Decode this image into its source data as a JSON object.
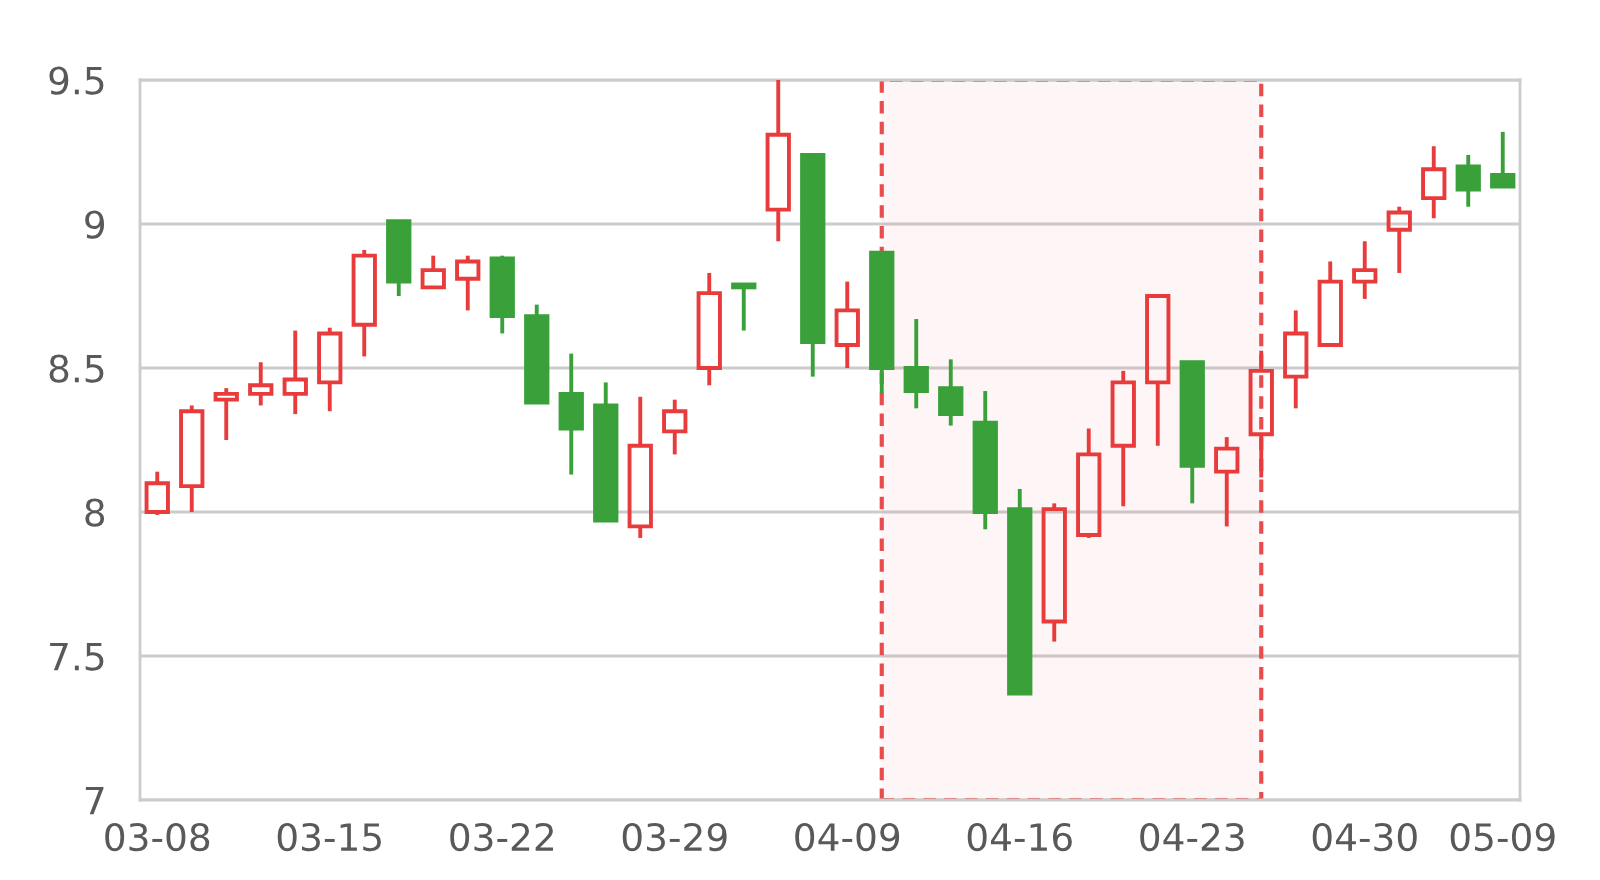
{
  "chart_data": {
    "type": "candlestick",
    "categories": [
      "03-08",
      null,
      null,
      null,
      null,
      "03-15",
      null,
      null,
      null,
      null,
      "03-22",
      null,
      null,
      null,
      null,
      "03-29",
      null,
      null,
      null,
      null,
      "04-09",
      null,
      null,
      null,
      null,
      "04-16",
      null,
      null,
      null,
      null,
      "04-23",
      null,
      null,
      null,
      null,
      "04-30",
      null,
      null,
      null,
      "05-09"
    ],
    "ohlc": [
      [
        8.0,
        8.14,
        7.99,
        8.1
      ],
      [
        8.09,
        8.37,
        8.0,
        8.35
      ],
      [
        8.39,
        8.43,
        8.25,
        8.41
      ],
      [
        8.41,
        8.52,
        8.37,
        8.44
      ],
      [
        8.41,
        8.63,
        8.34,
        8.46
      ],
      [
        8.45,
        8.64,
        8.35,
        8.62
      ],
      [
        8.65,
        8.91,
        8.54,
        8.89
      ],
      [
        9.01,
        9.01,
        8.75,
        8.8
      ],
      [
        8.78,
        8.89,
        8.78,
        8.84
      ],
      [
        8.81,
        8.89,
        8.7,
        8.87
      ],
      [
        8.88,
        8.89,
        8.62,
        8.68
      ],
      [
        8.68,
        8.72,
        8.38,
        8.38
      ],
      [
        8.41,
        8.55,
        8.13,
        8.29
      ],
      [
        8.37,
        8.45,
        7.97,
        7.97
      ],
      [
        7.95,
        8.4,
        7.91,
        8.23
      ],
      [
        8.28,
        8.39,
        8.2,
        8.35
      ],
      [
        8.5,
        8.83,
        8.44,
        8.76
      ],
      [
        8.79,
        8.79,
        8.63,
        8.78
      ],
      [
        9.05,
        9.5,
        8.94,
        9.31
      ],
      [
        9.24,
        9.24,
        8.47,
        8.59
      ],
      [
        8.58,
        8.8,
        8.5,
        8.7
      ],
      [
        8.9,
        8.9,
        8.41,
        8.5
      ],
      [
        8.5,
        8.67,
        8.36,
        8.42
      ],
      [
        8.43,
        8.53,
        8.3,
        8.34
      ],
      [
        8.31,
        8.42,
        7.94,
        8.0
      ],
      [
        8.01,
        8.08,
        7.37,
        7.37
      ],
      [
        7.62,
        8.03,
        7.55,
        8.01
      ],
      [
        7.92,
        8.29,
        7.91,
        8.2
      ],
      [
        8.23,
        8.49,
        8.02,
        8.45
      ],
      [
        8.45,
        8.75,
        8.23,
        8.75
      ],
      [
        8.52,
        8.52,
        8.03,
        8.16
      ],
      [
        8.14,
        8.26,
        7.95,
        8.22
      ],
      [
        8.27,
        8.56,
        8.12,
        8.49
      ],
      [
        8.47,
        8.7,
        8.36,
        8.62
      ],
      [
        8.58,
        8.87,
        8.58,
        8.8
      ],
      [
        8.8,
        8.94,
        8.74,
        8.84
      ],
      [
        8.98,
        9.06,
        8.83,
        9.04
      ],
      [
        9.09,
        9.27,
        9.02,
        9.19
      ],
      [
        9.2,
        9.24,
        9.06,
        9.12
      ],
      [
        9.17,
        9.32,
        9.13,
        9.13
      ]
    ],
    "colors": [
      "#e83b3b",
      "#e83b3b",
      "#e83b3b",
      "#e83b3b",
      "#e83b3b",
      "#e83b3b",
      "#e83b3b",
      "#39a03a",
      "#e83b3b",
      "#e83b3b",
      "#39a03a",
      "#39a03a",
      "#39a03a",
      "#39a03a",
      "#e83b3b",
      "#e83b3b",
      "#e83b3b",
      "#39a03a",
      "#e83b3b",
      "#39a03a",
      "#e83b3b",
      "#39a03a",
      "#39a03a",
      "#39a03a",
      "#39a03a",
      "#39a03a",
      "#e83b3b",
      "#e83b3b",
      "#e83b3b",
      "#e83b3b",
      "#39a03a",
      "#e83b3b",
      "#e83b3b",
      "#e83b3b",
      "#e83b3b",
      "#e83b3b",
      "#e83b3b",
      "#e83b3b",
      "#39a03a",
      "#39a03a"
    ],
    "ylim": [
      7,
      9.5
    ],
    "yticks": [
      7,
      {
        "value": 7.5,
        "label": "7.5"
      },
      8,
      {
        "value": 8.5,
        "label": "8.5"
      },
      9,
      {
        "value": 9.5,
        "label": "9.5"
      }
    ],
    "grid": "y"
  }
}
